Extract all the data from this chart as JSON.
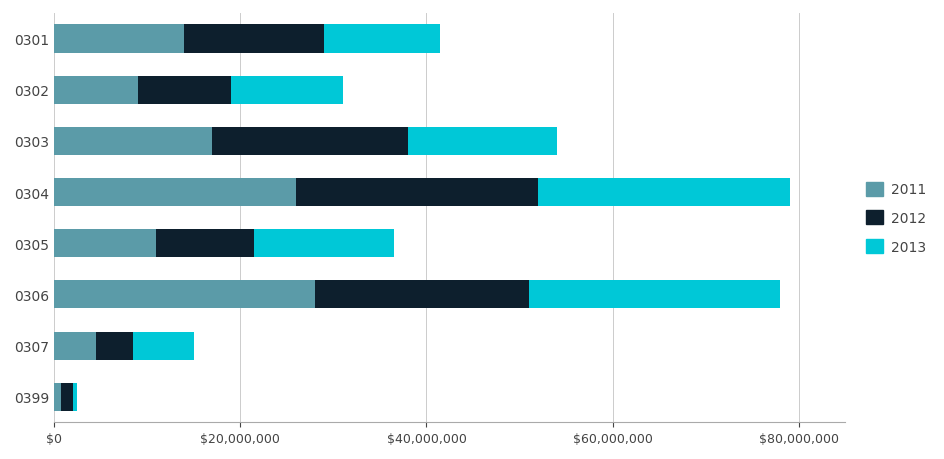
{
  "categories": [
    "0301",
    "0302",
    "0303",
    "0304",
    "0305",
    "0306",
    "0307",
    "0399"
  ],
  "series": {
    "2011": [
      14000000,
      9000000,
      17000000,
      26000000,
      11000000,
      28000000,
      4500000,
      800000
    ],
    "2012": [
      15000000,
      10000000,
      21000000,
      26000000,
      10500000,
      23000000,
      4000000,
      1200000
    ],
    "2013": [
      12500000,
      12000000,
      16000000,
      27000000,
      15000000,
      27000000,
      6500000,
      500000
    ]
  },
  "colors": {
    "2011": "#5B9BA8",
    "2012": "#0D1F2D",
    "2013": "#00C8D7"
  },
  "xlim": [
    0,
    85000000
  ],
  "xticks": [
    0,
    20000000,
    40000000,
    60000000,
    80000000
  ],
  "background_color": "#ffffff",
  "legend_labels": [
    "2011",
    "2012",
    "2013"
  ],
  "bar_height": 0.55
}
